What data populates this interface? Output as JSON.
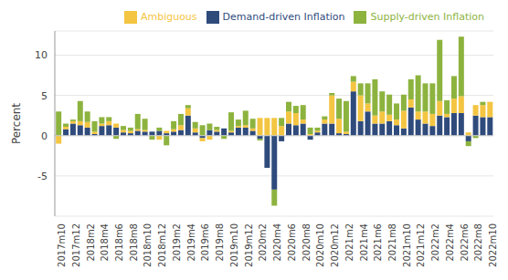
{
  "chart_data": {
    "type": "bar",
    "stacked": true,
    "y_label": "Percent",
    "categories": [
      "2017m10",
      null,
      "2017m12",
      null,
      "2018m2",
      null,
      "2018m4",
      null,
      "2018m6",
      null,
      "2018m8",
      null,
      "2018m10",
      null,
      "2018m12",
      null,
      "2019m2",
      null,
      "2019m4",
      null,
      "2019m6",
      null,
      "2019m8",
      null,
      "2019m10",
      null,
      "2019m12",
      null,
      "2020m2",
      null,
      "2020m4",
      null,
      "2020m6",
      null,
      "2020m8",
      null,
      "2020m10",
      null,
      "2020m12",
      null,
      "2021m2",
      null,
      "2021m4",
      null,
      "2021m6",
      null,
      "2021m8",
      null,
      "2021m10",
      null,
      "2021m12",
      null,
      "2022m2",
      null,
      "2022m4",
      null,
      "2022m6",
      null,
      "2022m8",
      null,
      "2022m10"
    ],
    "series": [
      {
        "name": "Demand-driven Inflation",
        "color": "#2f4b7c",
        "values": [
          0,
          0.8,
          1.5,
          1.3,
          1.0,
          0.2,
          1.2,
          1.3,
          1.0,
          0.4,
          0.3,
          0.6,
          0.5,
          0.5,
          0.6,
          0.3,
          0.5,
          0.7,
          2.5,
          0.4,
          -0.3,
          0.7,
          0.5,
          0.9,
          0.4,
          1.0,
          1.0,
          0.6,
          -0.4,
          -4.0,
          -6.7,
          -0.7,
          1.5,
          1.3,
          1.5,
          -0.5,
          0.4,
          1.5,
          1.5,
          0.3,
          0.2,
          5.5,
          1.8,
          3.0,
          1.5,
          1.5,
          1.8,
          1.3,
          0.9,
          3.5,
          2.0,
          1.5,
          1.2,
          2.5,
          2.3,
          2.8,
          2.8,
          -0.7,
          2.5,
          2.3,
          2.3
        ]
      },
      {
        "name": "Ambiguous",
        "color": "#f4c542",
        "values": [
          -1.0,
          0.3,
          0.3,
          0.5,
          0.7,
          0.3,
          0.3,
          0.5,
          0.5,
          0.3,
          0.3,
          0.2,
          0.2,
          0,
          -0.5,
          0.3,
          0.3,
          0.6,
          0.9,
          0.5,
          -0.4,
          -0.5,
          0.2,
          0,
          0.2,
          0.2,
          0.3,
          0.3,
          2.2,
          2.2,
          2.2,
          1.2,
          1.5,
          1.5,
          0.5,
          0.2,
          0.2,
          0.5,
          3.5,
          1.8,
          0.3,
          1.2,
          3.2,
          1.0,
          1.0,
          1.5,
          0.8,
          0.7,
          2.2,
          1.0,
          1.0,
          1.5,
          1.5,
          1.8,
          0.4,
          1.8,
          2.1,
          0.4,
          1.3,
          1.5,
          1.9
        ]
      },
      {
        "name": "Supply-driven Inflation",
        "color": "#8db33f",
        "values": [
          3.0,
          0.4,
          0.2,
          2.5,
          1.3,
          1.3,
          0.8,
          0.5,
          -0.4,
          0.5,
          0.4,
          1.9,
          1.4,
          -0.5,
          0.4,
          -1.2,
          1.0,
          1.4,
          0.4,
          0.8,
          1.3,
          0.8,
          0.4,
          -0.4,
          2.3,
          0.8,
          1.8,
          1.2,
          -0.2,
          0,
          -2.0,
          1.0,
          1.2,
          0.9,
          1.8,
          0.8,
          0.4,
          0.4,
          0.3,
          2.5,
          3.8,
          0.7,
          1.5,
          2.5,
          4.5,
          2.5,
          2.5,
          2.0,
          2.0,
          2.5,
          4.5,
          3.5,
          3.8,
          7.6,
          1.7,
          2.8,
          7.4,
          -0.6,
          -0.3,
          0.4,
          0
        ]
      }
    ],
    "ylim": [
      -10,
      13
    ],
    "yticks": [
      -5,
      0,
      5,
      10
    ],
    "grid": true,
    "legend": "top-right"
  }
}
